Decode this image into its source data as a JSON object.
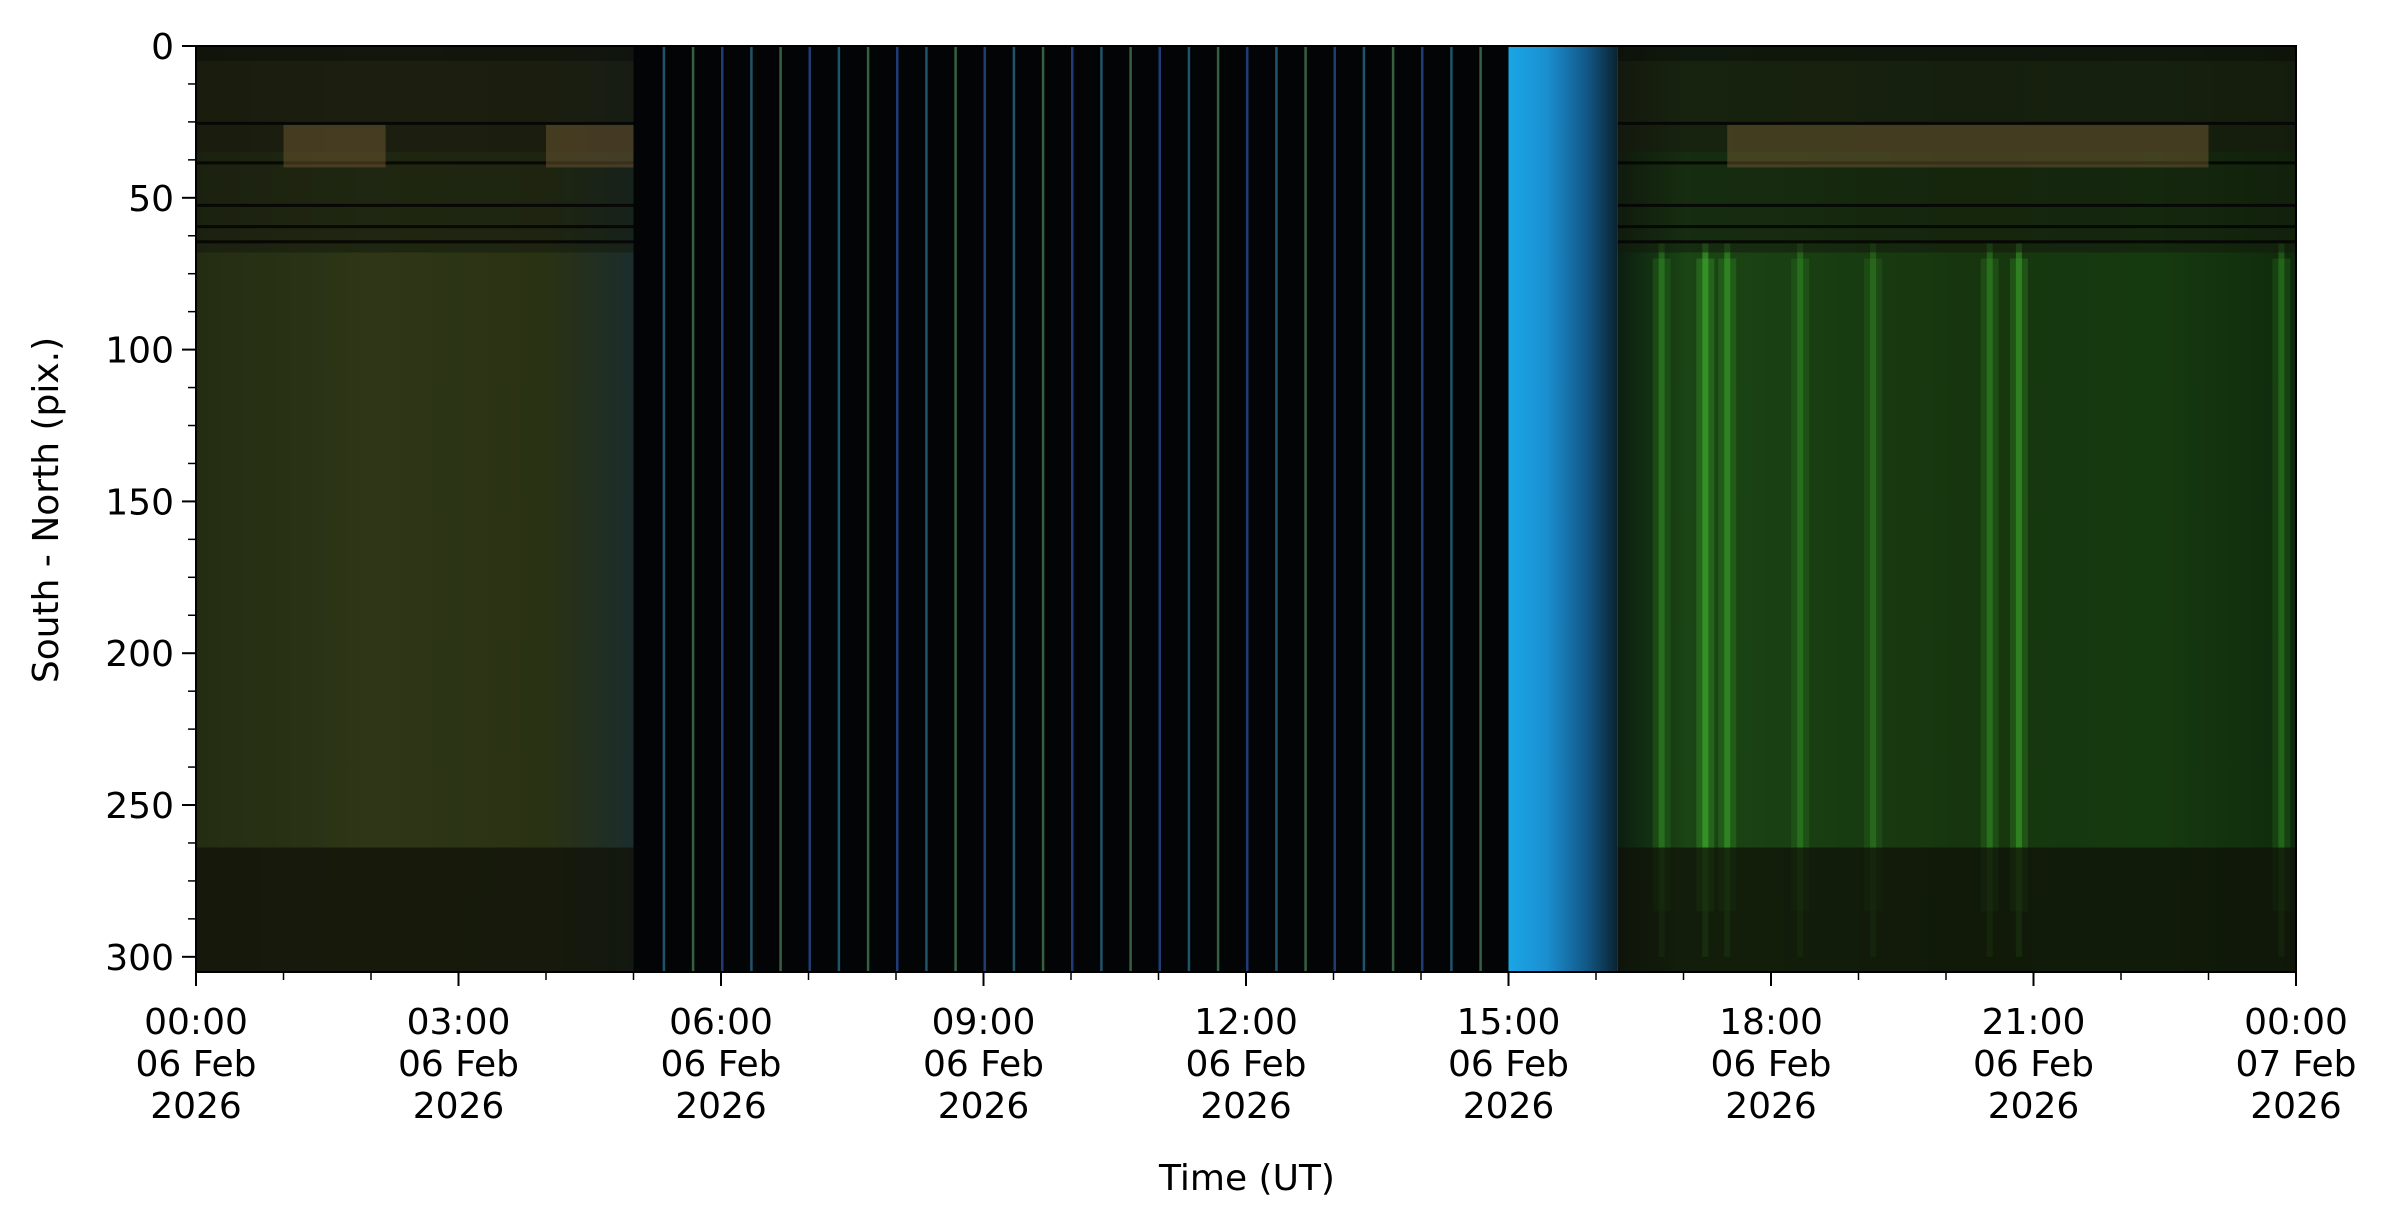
{
  "chart_data": {
    "type": "heatmap",
    "title": "",
    "xlabel": "Time (UT)",
    "ylabel": "South - North (pix.)",
    "x_range": [
      "2026-02-06T00:00",
      "2026-02-07T00:00"
    ],
    "ylim": [
      305,
      0
    ],
    "y_inverted": true,
    "grid": false,
    "x_ticks": [
      {
        "value": "2026-02-06T00:00",
        "label": [
          "00:00",
          "06 Feb",
          "2026"
        ]
      },
      {
        "value": "2026-02-06T03:00",
        "label": [
          "03:00",
          "06 Feb",
          "2026"
        ]
      },
      {
        "value": "2026-02-06T06:00",
        "label": [
          "06:00",
          "06 Feb",
          "2026"
        ]
      },
      {
        "value": "2026-02-06T09:00",
        "label": [
          "09:00",
          "06 Feb",
          "2026"
        ]
      },
      {
        "value": "2026-02-06T12:00",
        "label": [
          "12:00",
          "06 Feb",
          "2026"
        ]
      },
      {
        "value": "2026-02-06T15:00",
        "label": [
          "15:00",
          "06 Feb",
          "2026"
        ]
      },
      {
        "value": "2026-02-06T18:00",
        "label": [
          "18:00",
          "06 Feb",
          "2026"
        ]
      },
      {
        "value": "2026-02-06T21:00",
        "label": [
          "21:00",
          "06 Feb",
          "2026"
        ]
      },
      {
        "value": "2026-02-07T00:00",
        "label": [
          "00:00",
          "07 Feb",
          "2026"
        ]
      }
    ],
    "y_ticks": [
      {
        "value": 0,
        "label": "0"
      },
      {
        "value": 50,
        "label": "50"
      },
      {
        "value": 100,
        "label": "100"
      },
      {
        "value": 150,
        "label": "150"
      },
      {
        "value": 200,
        "label": "200"
      },
      {
        "value": 250,
        "label": "250"
      },
      {
        "value": 300,
        "label": "300"
      }
    ],
    "y_minor_step": 12.5,
    "x_minor_step_hours": 1,
    "regions": [
      {
        "name": "night-early",
        "x_start": "2026-02-06T00:00",
        "x_end": "2026-02-06T05:00",
        "color": "#2a3214"
      },
      {
        "name": "daylight",
        "x_start": "2026-02-06T05:00",
        "x_end": "2026-02-06T15:00",
        "color": "#020406"
      },
      {
        "name": "twilight",
        "x_start": "2026-02-06T15:00",
        "x_end": "2026-02-06T16:15",
        "color": "#1d8fd0"
      },
      {
        "name": "night-late",
        "x_start": "2026-02-06T16:15",
        "x_end": "2026-02-07T00:00",
        "color": "#16300f"
      }
    ],
    "aurora_streaks": [
      {
        "x": "2026-02-06T16:45",
        "brightness": 0.55
      },
      {
        "x": "2026-02-06T17:15",
        "brightness": 0.9
      },
      {
        "x": "2026-02-06T17:30",
        "brightness": 0.7
      },
      {
        "x": "2026-02-06T18:20",
        "brightness": 0.5
      },
      {
        "x": "2026-02-06T19:10",
        "brightness": 0.45
      },
      {
        "x": "2026-02-06T20:30",
        "brightness": 0.55
      },
      {
        "x": "2026-02-06T20:50",
        "brightness": 0.75
      },
      {
        "x": "2026-02-06T23:50",
        "brightness": 0.5
      }
    ]
  }
}
